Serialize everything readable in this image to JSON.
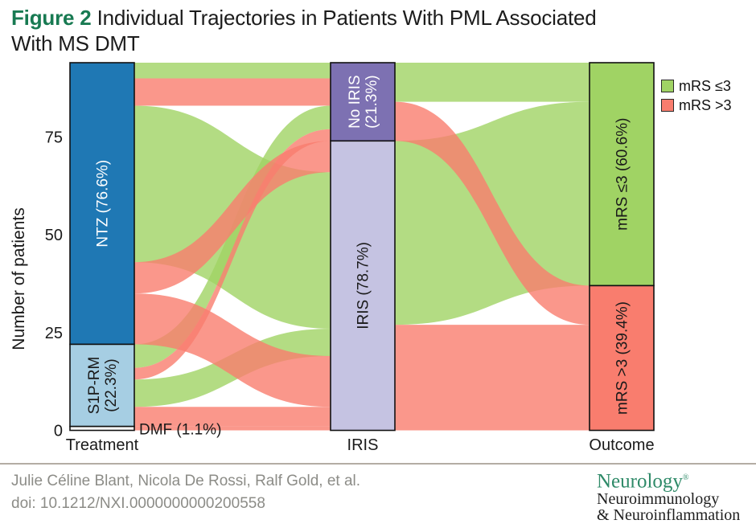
{
  "title": {
    "figure_label": "Figure 2",
    "line1": "Individual Trajectories in Patients With PML Associated",
    "line2": "With MS DMT"
  },
  "y_axis": {
    "label": "Number of patients",
    "ticks": [
      0,
      25,
      50,
      75
    ]
  },
  "x_axis": {
    "labels": [
      "Treatment",
      "IRIS",
      "Outcome"
    ]
  },
  "legend": [
    {
      "label": "mRS ≤3",
      "color": "#a0d364"
    },
    {
      "label": "mRS >3",
      "color": "#f97d6e"
    }
  ],
  "footer": {
    "authors": "Julie Céline Blant, Nicola De Rossi, Ralf Gold, et al.",
    "doi": "doi: 10.1212/NXI.0000000000200558",
    "journal_name": "Neurology",
    "journal_reg": "®",
    "journal_sub1": "Neuroimmunology",
    "journal_sub2": "& Neuroinflammation"
  },
  "chart_data": {
    "type": "sankey",
    "title": "Figure 2 Individual Trajectories in Patients With PML Associated With MS DMT",
    "unit": "patients",
    "total_patients": 94,
    "ylabel": "Number of patients",
    "ylim": [
      0,
      94
    ],
    "yticks": [
      0,
      25,
      50,
      75
    ],
    "stage_labels": [
      "Treatment",
      "IRIS",
      "Outcome"
    ],
    "colors": {
      "green": "#a0d364",
      "salmon": "#f97d6e"
    },
    "outcome_legend": {
      "green": "mRS ≤3",
      "salmon": "mRS >3"
    },
    "nodes": [
      {
        "id": "ntz",
        "column": "treatment",
        "lines": [
          "NTZ (76.6%)"
        ],
        "percent": "76.6%",
        "value": 72,
        "top": 0,
        "fill": "#1f78b4",
        "text_color": "#ffffff"
      },
      {
        "id": "s1prm",
        "column": "treatment",
        "lines": [
          "S1P-RM",
          "(22.3%)"
        ],
        "percent": "22.3%",
        "value": 21,
        "top": 72,
        "fill": "#a6cee3",
        "text_color": "#1a1a1a"
      },
      {
        "id": "dmf",
        "column": "treatment",
        "lines": [],
        "outside_label": "DMF (1.1%)",
        "percent": "1.1%",
        "value": 1,
        "top": 93,
        "fill": "#ffffff",
        "text_color": "#1a1a1a"
      },
      {
        "id": "no_iris",
        "column": "iris",
        "lines": [
          "No IRIS",
          "(21.3%)"
        ],
        "percent": "21.3%",
        "value": 20,
        "top": 0,
        "fill": "#7d71b2",
        "text_color": "#ffffff"
      },
      {
        "id": "iris",
        "column": "iris",
        "lines": [
          "IRIS (78.7%)"
        ],
        "percent": "78.7%",
        "value": 74,
        "top": 20,
        "fill": "#c5c3e2",
        "text_color": "#1a1a1a"
      },
      {
        "id": "mrs_le3",
        "column": "outcome",
        "lines": [
          "mRS ≤3 (60.6%)"
        ],
        "percent": "60.6%",
        "value": 57,
        "top": 0,
        "fill": "#a0d364",
        "text_color": "#1a1a1a"
      },
      {
        "id": "mrs_gt3",
        "column": "outcome",
        "lines": [
          "mRS >3 (39.4%)"
        ],
        "percent": "39.4%",
        "value": 37,
        "top": 57,
        "fill": "#f97d6e",
        "text_color": "#1a1a1a"
      }
    ],
    "flows": [
      {
        "source": "ntz",
        "target": "iris",
        "value": 40,
        "s_offset": 11,
        "t_offset": 8,
        "color": "green"
      },
      {
        "source": "s1prm",
        "target": "iris",
        "value": 7,
        "s_offset": 9,
        "t_offset": 48,
        "color": "green"
      },
      {
        "source": "ntz",
        "target": "no_iris",
        "value": 4,
        "s_offset": 0,
        "t_offset": 0,
        "color": "green"
      },
      {
        "source": "s1prm",
        "target": "no_iris",
        "value": 6,
        "s_offset": 0,
        "t_offset": 11,
        "color": "green"
      },
      {
        "source": "no_iris",
        "target": "mrs_le3",
        "value": 10,
        "s_offset": 0,
        "t_offset": 0,
        "color": "green"
      },
      {
        "source": "iris",
        "target": "mrs_le3",
        "value": 47,
        "s_offset": 0,
        "t_offset": 10,
        "color": "green"
      },
      {
        "source": "ntz",
        "target": "no_iris",
        "value": 7,
        "s_offset": 4,
        "t_offset": 4,
        "color": "salmon"
      },
      {
        "source": "ntz",
        "target": "iris",
        "value": 8,
        "s_offset": 51,
        "t_offset": 0,
        "color": "salmon"
      },
      {
        "source": "ntz",
        "target": "iris",
        "value": 13,
        "s_offset": 59,
        "t_offset": 55,
        "color": "salmon"
      },
      {
        "source": "s1prm",
        "target": "no_iris",
        "value": 3,
        "s_offset": 6,
        "t_offset": 17,
        "color": "salmon"
      },
      {
        "source": "s1prm",
        "target": "iris",
        "value": 5,
        "s_offset": 16,
        "t_offset": 68,
        "color": "salmon"
      },
      {
        "source": "dmf",
        "target": "iris",
        "value": 1,
        "s_offset": 0,
        "t_offset": 73,
        "color": "salmon"
      },
      {
        "source": "no_iris",
        "target": "mrs_gt3",
        "value": 10,
        "s_offset": 10,
        "t_offset": 0,
        "color": "salmon"
      },
      {
        "source": "iris",
        "target": "mrs_gt3",
        "value": 27,
        "s_offset": 47,
        "t_offset": 10,
        "color": "salmon"
      }
    ]
  }
}
